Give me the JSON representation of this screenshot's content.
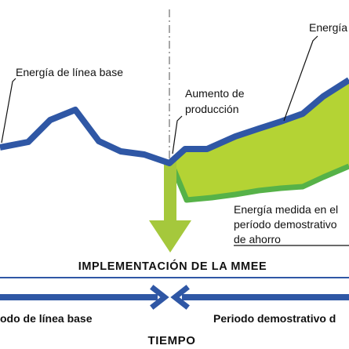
{
  "labels": {
    "adjusted_energy": "Energía",
    "baseline_energy": "Energía de línea base",
    "production_increase_line1": "Aumento de",
    "production_increase_line2": "producción",
    "measured_energy_line1": "Energía medida en el",
    "measured_energy_line2": "período demostrativo",
    "measured_energy_line3": "de ahorro",
    "implementation": "IMPLEMENTACIÓN DE LA MMEE",
    "baseline_period": "odo de línea base",
    "demonstration_period": "Periodo demostrativo d",
    "time_axis": "TIEMPO"
  },
  "colors": {
    "baseline_line": "#2f57a5",
    "savings_area": "#b4d334",
    "measured_line": "#56b248",
    "implementation_arrow": "#a5c83c",
    "text": "#111111"
  }
}
